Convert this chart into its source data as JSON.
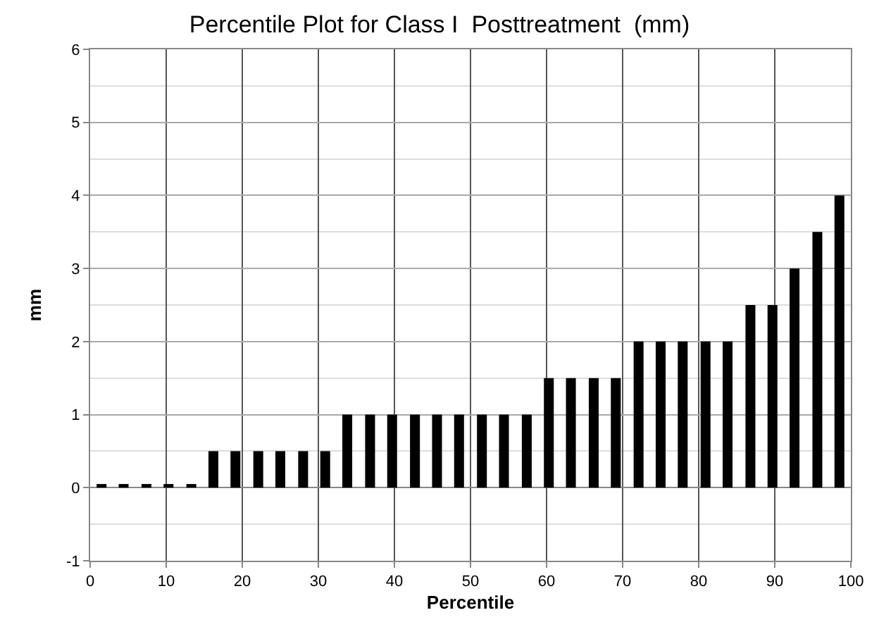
{
  "chart_data": {
    "type": "bar",
    "title": "Percentile Plot for Class I  Posttreatment  (mm)",
    "xlabel": "Percentile",
    "ylabel": "mm",
    "x": [
      1.5,
      4.4,
      7.4,
      10.3,
      13.3,
      16.2,
      19.1,
      22.1,
      25,
      28,
      30.9,
      33.8,
      36.8,
      39.7,
      42.7,
      45.6,
      48.5,
      51.5,
      54.4,
      57.4,
      60.3,
      63.2,
      66.2,
      69.1,
      72.1,
      75,
      77.9,
      80.9,
      83.8,
      86.8,
      89.7,
      92.6,
      95.6,
      98.5
    ],
    "values": [
      0.05,
      0.05,
      0.05,
      0.05,
      0.05,
      0.5,
      0.5,
      0.5,
      0.5,
      0.5,
      0.5,
      1,
      1,
      1,
      1,
      1,
      1,
      1,
      1,
      1,
      1.5,
      1.5,
      1.5,
      1.5,
      2,
      2,
      2,
      2,
      2,
      2.5,
      2.5,
      3,
      3.5,
      4
    ],
    "color": "#000000",
    "xlim": [
      0,
      100
    ],
    "xticks": [
      0,
      10,
      20,
      30,
      40,
      50,
      60,
      70,
      80,
      90,
      100
    ],
    "ylim": [
      -1,
      6
    ],
    "yticks": [
      -1,
      0,
      1,
      2,
      3,
      4,
      5,
      6
    ],
    "grid": true
  }
}
